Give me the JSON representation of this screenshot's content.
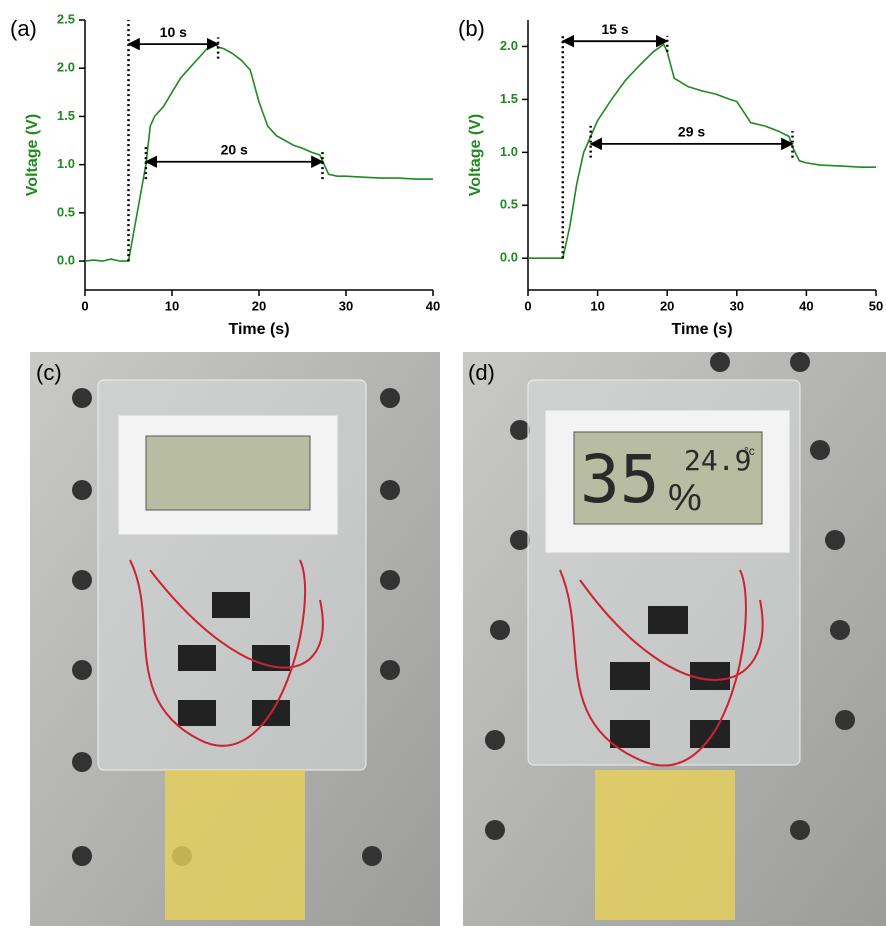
{
  "chart_data": [
    {
      "type": "line",
      "panel": "(a)",
      "x_label": "Time (s)",
      "y_label": "Voltage (V)",
      "x": [
        0,
        1,
        2,
        3,
        4,
        5,
        6,
        7,
        7.5,
        8,
        9,
        10,
        11,
        12,
        13,
        14,
        15,
        15.3,
        16,
        17,
        18,
        19,
        20,
        21,
        22,
        23,
        24,
        25,
        26,
        27,
        28,
        29,
        30,
        32,
        34,
        36,
        38,
        40
      ],
      "series": [
        {
          "color": "#1f8a1f",
          "values": [
            0,
            0.01,
            0,
            0.02,
            0,
            0,
            0.5,
            1.0,
            1.4,
            1.5,
            1.6,
            1.75,
            1.9,
            2.0,
            2.1,
            2.2,
            2.25,
            2.22,
            2.2,
            2.15,
            2.08,
            1.98,
            1.65,
            1.4,
            1.3,
            1.25,
            1.2,
            1.17,
            1.13,
            1.1,
            0.9,
            0.88,
            0.88,
            0.87,
            0.86,
            0.86,
            0.85,
            0.85
          ]
        }
      ],
      "xlim": [
        0,
        40
      ],
      "xticks": [
        0,
        10,
        20,
        30,
        40
      ],
      "ylim": [
        -0.3,
        2.5
      ],
      "yticks": [
        {
          "value": 0,
          "label": "0.0"
        },
        0.5,
        {
          "value": 1,
          "label": "1.0"
        },
        1.5,
        {
          "value": 2,
          "label": "2.0"
        },
        2.5
      ],
      "vlines": [
        {
          "x": 5,
          "y": [
            0,
            2.5
          ]
        },
        {
          "x": 15.3,
          "y": [
            2.1,
            2.32
          ]
        },
        {
          "x": 7,
          "y": [
            0.85,
            1.2
          ]
        },
        {
          "x": 27.3,
          "y": [
            0.85,
            1.15
          ]
        }
      ],
      "annotations": [
        {
          "text": "10 s",
          "x": [
            5,
            15.3
          ],
          "y": 2.25
        },
        {
          "text": "20 s",
          "x": [
            7,
            27.3
          ],
          "y": 1.03
        }
      ]
    },
    {
      "type": "line",
      "panel": "(b)",
      "x_label": "Time (s)",
      "y_label": "Voltage (V)",
      "x": [
        0,
        2,
        4,
        5,
        6,
        7,
        8,
        9,
        10,
        12,
        14,
        16,
        18,
        19.5,
        20,
        21,
        23,
        25,
        27,
        29,
        30,
        31,
        32,
        34,
        36,
        37.5,
        38,
        39,
        40,
        42,
        45,
        48,
        50
      ],
      "series": [
        {
          "color": "#1f8a1f",
          "values": [
            0,
            0,
            0,
            0,
            0.3,
            0.7,
            1.0,
            1.15,
            1.3,
            1.5,
            1.68,
            1.82,
            1.95,
            2.02,
            1.95,
            1.7,
            1.62,
            1.58,
            1.55,
            1.5,
            1.48,
            1.38,
            1.28,
            1.25,
            1.2,
            1.15,
            1.05,
            0.92,
            0.9,
            0.88,
            0.87,
            0.86,
            0.86
          ]
        }
      ],
      "xlim": [
        0,
        50
      ],
      "xticks": [
        0,
        10,
        20,
        30,
        40,
        50
      ],
      "ylim": [
        -0.3,
        2.25
      ],
      "yticks": [
        {
          "value": 0,
          "label": "0.0"
        },
        0.5,
        {
          "value": 1,
          "label": "1.0"
        },
        1.5,
        {
          "value": 2,
          "label": "2.0"
        }
      ],
      "vlines": [
        {
          "x": 5,
          "y": [
            0,
            2.1
          ]
        },
        {
          "x": 20,
          "y": [
            1.95,
            2.1
          ]
        },
        {
          "x": 9,
          "y": [
            0.95,
            1.25
          ]
        },
        {
          "x": 38,
          "y": [
            0.95,
            1.2
          ]
        }
      ],
      "annotations": [
        {
          "text": "15 s",
          "x": [
            5,
            20
          ],
          "y": 2.05
        },
        {
          "text": "29 s",
          "x": [
            9,
            38
          ],
          "y": 1.08
        }
      ]
    }
  ],
  "photos": [
    {
      "label": "(c)"
    },
    {
      "label": "(d)",
      "lcd": {
        "humidity": "35",
        "unit": "%",
        "temperature": "24.9",
        "temperature_unit": "°c"
      }
    }
  ]
}
